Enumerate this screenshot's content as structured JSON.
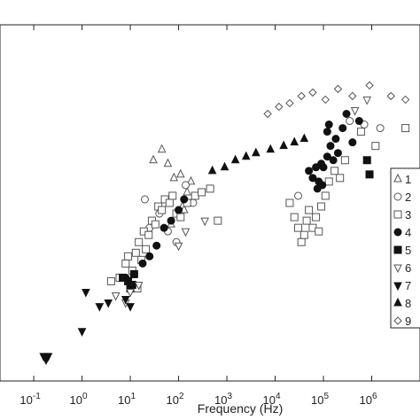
{
  "chart_data": {
    "type": "scatter",
    "title": "",
    "xlabel": "Frequency (Hz)",
    "ylabel": "",
    "xscale": "log",
    "xlim": [
      0.02,
      10000000
    ],
    "ylim": [
      0,
      1
    ],
    "x_ticks": [
      {
        "value": 0.1,
        "base": "10",
        "exp": "-1"
      },
      {
        "value": 1,
        "base": "10",
        "exp": "0"
      },
      {
        "value": 10,
        "base": "10",
        "exp": "1"
      },
      {
        "value": 100,
        "base": "10",
        "exp": "2"
      },
      {
        "value": 1000,
        "base": "10",
        "exp": "3"
      },
      {
        "value": 10000,
        "base": "10",
        "exp": "4"
      },
      {
        "value": 100000,
        "base": "10",
        "exp": "5"
      },
      {
        "value": 1000000,
        "base": "10",
        "exp": "6"
      }
    ],
    "grid": false,
    "legend_position": "right",
    "series": [
      {
        "name": "1",
        "marker": "triangle-up-open",
        "color": "#555555",
        "points": [
          [
            30,
            0.62
          ],
          [
            45,
            0.65
          ],
          [
            60,
            0.61
          ],
          [
            80,
            0.57
          ],
          [
            110,
            0.58
          ],
          [
            150,
            0.53
          ],
          [
            120,
            0.49
          ],
          [
            180,
            0.56
          ],
          [
            70,
            0.44
          ],
          [
            130,
            0.48
          ]
        ]
      },
      {
        "name": "2",
        "marker": "circle-open",
        "color": "#555555",
        "points": [
          [
            20,
            0.51
          ],
          [
            40,
            0.47
          ],
          [
            60,
            0.42
          ],
          [
            90,
            0.39
          ],
          [
            140,
            0.55
          ],
          [
            25,
            0.43
          ],
          [
            200,
            0.5
          ],
          [
            30000,
            0.52
          ],
          [
            60000,
            0.57
          ],
          [
            350000,
            0.73
          ],
          [
            700000,
            0.72
          ],
          [
            1500000,
            0.71
          ]
        ]
      },
      {
        "name": "3",
        "marker": "square-open",
        "color": "#555555",
        "points": [
          [
            4,
            0.28
          ],
          [
            6,
            0.29
          ],
          [
            8,
            0.33
          ],
          [
            9,
            0.35
          ],
          [
            11,
            0.31
          ],
          [
            13,
            0.36
          ],
          [
            15,
            0.39
          ],
          [
            17,
            0.34
          ],
          [
            19,
            0.42
          ],
          [
            21,
            0.37
          ],
          [
            24,
            0.41
          ],
          [
            28,
            0.45
          ],
          [
            33,
            0.44
          ],
          [
            38,
            0.49
          ],
          [
            45,
            0.48
          ],
          [
            52,
            0.51
          ],
          [
            65,
            0.5
          ],
          [
            75,
            0.52
          ],
          [
            90,
            0.47
          ],
          [
            110,
            0.46
          ],
          [
            150,
            0.5
          ],
          [
            220,
            0.52
          ],
          [
            300,
            0.53
          ],
          [
            450,
            0.54
          ],
          [
            650,
            0.45
          ],
          [
            14,
            0.26
          ],
          [
            20000,
            0.5
          ],
          [
            25000,
            0.46
          ],
          [
            30000,
            0.43
          ],
          [
            35000,
            0.39
          ],
          [
            40000,
            0.41
          ],
          [
            45000,
            0.45
          ],
          [
            50000,
            0.48
          ],
          [
            60000,
            0.43
          ],
          [
            70000,
            0.46
          ],
          [
            80000,
            0.42
          ],
          [
            90000,
            0.49
          ],
          [
            110000,
            0.52
          ],
          [
            130000,
            0.56
          ],
          [
            170000,
            0.59
          ],
          [
            220000,
            0.57
          ],
          [
            280000,
            0.62
          ],
          [
            600000,
            0.7
          ],
          [
            1200000,
            0.66
          ],
          [
            5000000,
            0.71
          ]
        ]
      },
      {
        "name": "4",
        "marker": "circle-filled",
        "color": "#111111",
        "points": [
          [
            8,
            0.29
          ],
          [
            12,
            0.3
          ],
          [
            18,
            0.33
          ],
          [
            25,
            0.35
          ],
          [
            35,
            0.38
          ],
          [
            50,
            0.43
          ],
          [
            70,
            0.45
          ],
          [
            100,
            0.48
          ],
          [
            130,
            0.51
          ],
          [
            50000,
            0.59
          ],
          [
            60000,
            0.57
          ],
          [
            70000,
            0.6
          ],
          [
            80000,
            0.56
          ],
          [
            90000,
            0.61
          ],
          [
            100000,
            0.6
          ],
          [
            120000,
            0.63
          ],
          [
            140000,
            0.66
          ],
          [
            160000,
            0.62
          ],
          [
            180000,
            0.68
          ],
          [
            200000,
            0.64
          ],
          [
            250000,
            0.71
          ],
          [
            300000,
            0.75
          ],
          [
            400000,
            0.67
          ],
          [
            550000,
            0.73
          ],
          [
            120000,
            0.7
          ],
          [
            130000,
            0.72
          ],
          [
            75000,
            0.54
          ],
          [
            95000,
            0.55
          ]
        ]
      },
      {
        "name": "5",
        "marker": "square-filled",
        "color": "#111111",
        "points": [
          [
            7,
            0.29
          ],
          [
            9,
            0.28
          ],
          [
            10,
            0.26
          ],
          [
            11,
            0.27
          ],
          [
            12,
            0.3
          ],
          [
            800000,
            0.62
          ],
          [
            900000,
            0.58
          ]
        ]
      },
      {
        "name": "6",
        "marker": "triangle-down-open",
        "color": "#555555",
        "points": [
          [
            5,
            0.24
          ],
          [
            8,
            0.22
          ],
          [
            10,
            0.25
          ],
          [
            15,
            0.27
          ],
          [
            100,
            0.38
          ],
          [
            140,
            0.42
          ],
          [
            350,
            0.45
          ],
          [
            450000,
            0.76
          ],
          [
            800000,
            0.79
          ]
        ]
      },
      {
        "name": "7",
        "marker": "triangle-down-filled",
        "color": "#111111",
        "points": [
          [
            0.16,
            0.07
          ],
          [
            0.18,
            0.06
          ],
          [
            0.2,
            0.07
          ],
          [
            1,
            0.14
          ],
          [
            1.2,
            0.25
          ],
          [
            2.3,
            0.21
          ],
          [
            3.5,
            0.22
          ],
          [
            8,
            0.23
          ],
          [
            10,
            0.21
          ]
        ]
      },
      {
        "name": "8",
        "marker": "triangle-up-filled",
        "color": "#111111",
        "points": [
          [
            500,
            0.59
          ],
          [
            900,
            0.6
          ],
          [
            1500,
            0.62
          ],
          [
            2500,
            0.63
          ],
          [
            4000,
            0.64
          ],
          [
            8000,
            0.65
          ],
          [
            15000,
            0.66
          ],
          [
            25000,
            0.67
          ],
          [
            40000,
            0.68
          ]
        ]
      },
      {
        "name": "9",
        "marker": "diamond-open",
        "color": "#555555",
        "points": [
          [
            7000,
            0.75
          ],
          [
            12000,
            0.77
          ],
          [
            20000,
            0.78
          ],
          [
            35000,
            0.8
          ],
          [
            60000,
            0.81
          ],
          [
            110000,
            0.79
          ],
          [
            200000,
            0.82
          ],
          [
            400000,
            0.8
          ],
          [
            900000,
            0.83
          ],
          [
            2500000,
            0.8
          ],
          [
            5000000,
            0.79
          ]
        ]
      }
    ]
  }
}
